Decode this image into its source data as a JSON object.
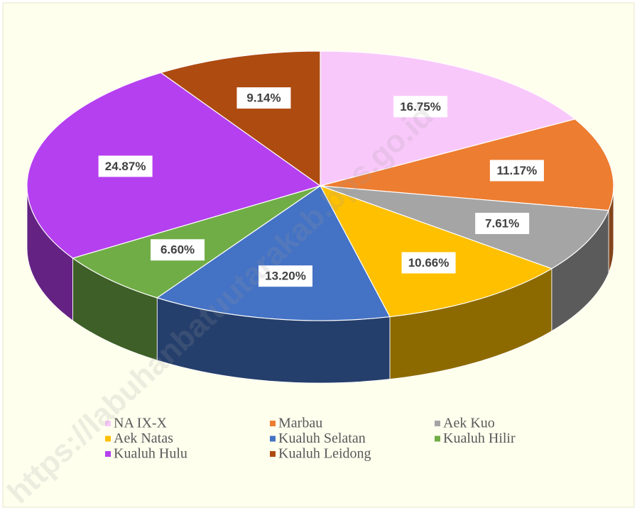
{
  "chart_data": {
    "type": "pie",
    "categories": [
      "NA IX-X",
      "Marbau",
      "Aek Kuo",
      "Aek Natas",
      "Kualuh Selatan",
      "Kualuh Hilir",
      "Kualuh Hulu",
      "Kualuh Leidong"
    ],
    "values": [
      16.75,
      11.17,
      7.61,
      10.66,
      13.2,
      6.6,
      24.87,
      9.14
    ],
    "value_labels": [
      "16.75%",
      "11.17%",
      "7.61%",
      "10.66%",
      "13.20%",
      "6.60%",
      "24.87%",
      "9.14%"
    ],
    "colors": [
      "#f9c8fa",
      "#ed7d31",
      "#a5a5a5",
      "#ffc000",
      "#4472c4",
      "#70ad47",
      "#b540ef",
      "#ae4b10"
    ],
    "legend": "bottom",
    "watermark": "https://labuhanbatuutarakab.bps.go.id"
  }
}
